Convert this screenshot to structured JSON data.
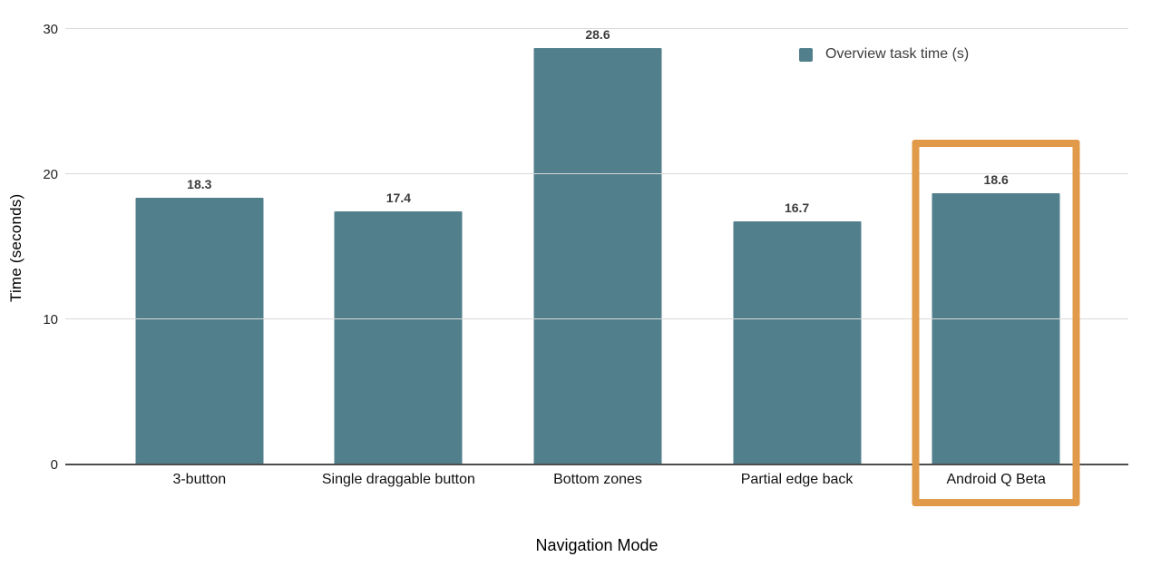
{
  "chart_data": {
    "type": "bar",
    "title": "",
    "categories": [
      "3-button",
      "Single draggable button",
      "Bottom zones",
      "Partial edge back",
      "Android Q Beta"
    ],
    "values": [
      18.3,
      17.4,
      28.6,
      16.7,
      18.6
    ],
    "value_labels": [
      "18.3",
      "17.4",
      "28.6",
      "16.7",
      "18.6"
    ],
    "series": [
      {
        "name": "Overview task time (s)",
        "values": [
          18.3,
          17.4,
          28.6,
          16.7,
          18.6
        ]
      }
    ],
    "xlabel": "Navigation Mode",
    "ylabel": "Time (seconds)",
    "ylim": [
      0,
      30
    ],
    "yticks": [
      0,
      10,
      20,
      30
    ],
    "grid": "horizontal",
    "legend": {
      "label": "Overview task time (s)",
      "position": "top-right"
    },
    "highlight": {
      "category": "Android Q Beta",
      "border_color": "#E1994A"
    },
    "colors": {
      "bar": "#527F8C",
      "highlight_border": "#E1994A",
      "gridline": "#D9D9D9",
      "axis_line": "#4D4D4D",
      "value_label": "#3C3C3C",
      "tick_label": "#1F1F1F"
    }
  }
}
